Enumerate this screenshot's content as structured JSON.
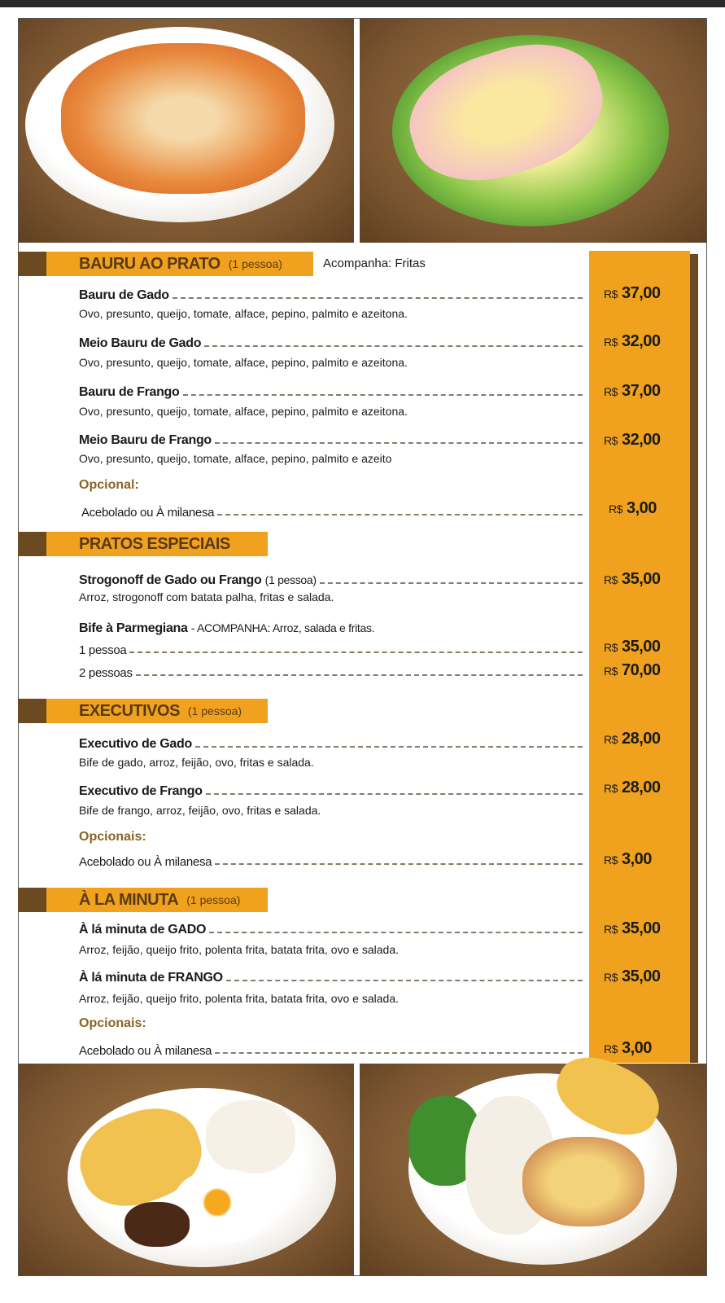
{
  "colors": {
    "accent": "#f0a21e",
    "brown": "#6b4a22",
    "background_photo": "#7a5530"
  },
  "images": [
    "bauru-plate-icon",
    "bauru-salad-plate-icon",
    "executivo-plate-icon",
    "strogonoff-plate-icon"
  ],
  "currency": "R$",
  "sections": [
    {
      "title": "BAURU AO PRATO",
      "subtitle": "(1 pessoa)",
      "note": "Acompanha: Fritas",
      "items": [
        {
          "name": "Bauru de Gado",
          "desc": "Ovo, presunto, queijo, tomate, alface, pepino, palmito e azeitona.",
          "price": "37,00"
        },
        {
          "name": "Meio Bauru de Gado",
          "desc": "Ovo, presunto, queijo, tomate, alface, pepino, palmito e azeitona.",
          "price": "32,00"
        },
        {
          "name": "Bauru de Frango",
          "desc": "Ovo, presunto, queijo, tomate, alface, pepino, palmito e azeitona.",
          "price": "37,00"
        },
        {
          "name": "Meio Bauru de Frango",
          "desc": "Ovo, presunto, queijo, tomate, alface, pepino, palmito e azeito",
          "price": "32,00"
        }
      ],
      "optional_label": "Opcional:",
      "optional": {
        "name": "Acebolado ou À milanesa",
        "price": "3,00"
      }
    },
    {
      "title": "PRATOS ESPECIAIS",
      "items": [
        {
          "name": "Strogonoff de Gado ou Frango",
          "name_extra": "(1 pessoa)",
          "desc": "Arroz, strogonoff com batata palha, fritas e salada.",
          "price": "35,00"
        },
        {
          "name": "Bife à Parmegiana",
          "name_extra": "- ACOMPANHA: Arroz, salada e fritas.",
          "options": [
            {
              "name": "1 pessoa",
              "price": "35,00"
            },
            {
              "name": "2 pessoas",
              "price": "70,00"
            }
          ]
        }
      ]
    },
    {
      "title": "EXECUTIVOS",
      "subtitle": "(1 pessoa)",
      "items": [
        {
          "name": "Executivo de Gado",
          "desc": "Bife de gado, arroz, feijão, ovo, fritas e salada.",
          "price": "28,00"
        },
        {
          "name": "Executivo de Frango",
          "desc": "Bife de frango, arroz, feijão, ovo, fritas e salada.",
          "price": "28,00"
        }
      ],
      "optional_label": "Opcionais:",
      "optional": {
        "name": "Acebolado ou À milanesa",
        "price": "3,00"
      }
    },
    {
      "title": "À LA MINUTA",
      "subtitle": "(1 pessoa)",
      "items": [
        {
          "name": "À lá minuta de GADO",
          "desc": "Arroz, feijão, queijo frito, polenta frita, batata frita, ovo e salada.",
          "price": "35,00"
        },
        {
          "name": "À lá minuta de FRANGO",
          "desc": "Arroz, feijão, queijo frito, polenta frita, batata frita, ovo e salada.",
          "price": "35,00"
        }
      ],
      "optional_label": "Opcionais:",
      "optional": {
        "name": "Acebolado ou À milanesa",
        "price": "3,00"
      }
    }
  ]
}
